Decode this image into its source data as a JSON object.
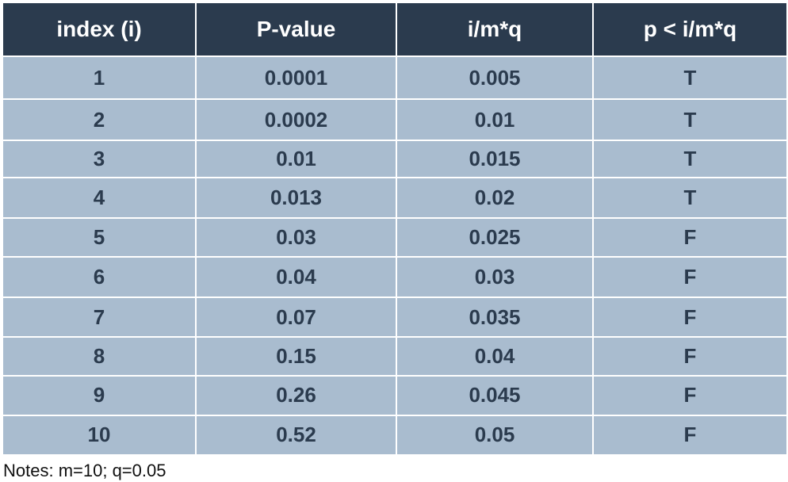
{
  "table": {
    "headers": [
      "index (i)",
      "P-value",
      "i/m*q",
      "p < i/m*q"
    ],
    "rows": [
      [
        "1",
        "0.0001",
        "0.005",
        "T"
      ],
      [
        "2",
        "0.0002",
        "0.01",
        "T"
      ],
      [
        "3",
        "0.01",
        "0.015",
        "T"
      ],
      [
        "4",
        "0.013",
        "0.02",
        "T"
      ],
      [
        "5",
        "0.03",
        "0.025",
        "F"
      ],
      [
        "6",
        "0.04",
        "0.03",
        "F"
      ],
      [
        "7",
        "0.07",
        "0.035",
        "F"
      ],
      [
        "8",
        "0.15",
        "0.04",
        "F"
      ],
      [
        "9",
        "0.26",
        "0.045",
        "F"
      ],
      [
        "10",
        "0.52",
        "0.05",
        "F"
      ]
    ]
  },
  "notes": "Notes: m=10; q=0.05",
  "colors": {
    "header_bg": "#2b3b4e",
    "header_text": "#ffffff",
    "cell_bg": "#a9bccf",
    "cell_text": "#2b3b4e"
  }
}
